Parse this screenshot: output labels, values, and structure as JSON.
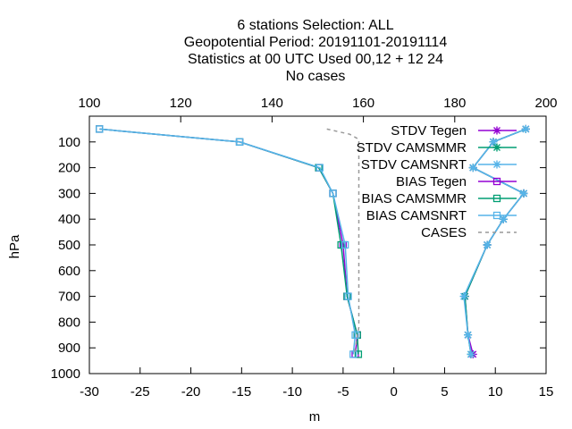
{
  "title_lines": [
    "6 stations Selection: ALL",
    "Geopotential  Period: 20191101-20191114",
    "Statistics at 00 UTC  Used  00,12  + 12 24",
    "No cases"
  ],
  "chart_data": {
    "type": "line",
    "xlabel": "m",
    "ylabel": "hPa",
    "xlim": [
      -30,
      15
    ],
    "x_ticks": [
      -30,
      -25,
      -20,
      -15,
      -10,
      -5,
      0,
      5,
      10,
      15
    ],
    "x2lim": [
      100,
      200
    ],
    "x2_ticks": [
      100,
      120,
      140,
      160,
      180,
      200
    ],
    "ylim": [
      1000,
      0
    ],
    "y_ticks": [
      100,
      200,
      300,
      400,
      500,
      600,
      700,
      800,
      900,
      1000
    ],
    "grid": false,
    "legend_position": "top-right",
    "series": [
      {
        "name": "STDV Tegen",
        "color": "#9400d3",
        "marker": "x-star",
        "axis": "x1",
        "points": [
          [
            13,
            50
          ],
          [
            9.8,
            100
          ],
          [
            7.8,
            200
          ],
          [
            12.8,
            300
          ],
          [
            10.8,
            400
          ],
          [
            9.2,
            500
          ],
          [
            7.0,
            700
          ],
          [
            7.3,
            850
          ],
          [
            7.8,
            925
          ]
        ]
      },
      {
        "name": "STDV CAMSMMR",
        "color": "#009e73",
        "marker": "x-star",
        "axis": "x1",
        "points": [
          [
            13,
            50
          ],
          [
            9.8,
            100
          ],
          [
            7.8,
            200
          ],
          [
            12.8,
            300
          ],
          [
            10.8,
            400
          ],
          [
            9.2,
            500
          ],
          [
            7.0,
            700
          ],
          [
            7.3,
            850
          ],
          [
            7.6,
            925
          ]
        ]
      },
      {
        "name": "STDV CAMSNRT",
        "color": "#56b4e9",
        "marker": "x-star",
        "axis": "x1",
        "points": [
          [
            13,
            50
          ],
          [
            9.8,
            100
          ],
          [
            7.8,
            200
          ],
          [
            12.8,
            300
          ],
          [
            10.8,
            400
          ],
          [
            9.2,
            500
          ],
          [
            6.9,
            700
          ],
          [
            7.3,
            850
          ],
          [
            7.6,
            925
          ]
        ]
      },
      {
        "name": "BIAS Tegen",
        "color": "#9400d3",
        "marker": "square",
        "axis": "x1",
        "points": [
          [
            -29,
            50
          ],
          [
            -15.2,
            100
          ],
          [
            -7.4,
            200
          ],
          [
            -6.0,
            300
          ],
          [
            -5.0,
            500
          ],
          [
            -4.6,
            700
          ],
          [
            -3.6,
            850
          ],
          [
            -3.8,
            925
          ]
        ]
      },
      {
        "name": "BIAS CAMSMMR",
        "color": "#009e73",
        "marker": "square",
        "axis": "x1",
        "points": [
          [
            -29,
            50
          ],
          [
            -15.2,
            100
          ],
          [
            -7.4,
            200
          ],
          [
            -6.0,
            300
          ],
          [
            -5.2,
            500
          ],
          [
            -4.6,
            700
          ],
          [
            -3.6,
            850
          ],
          [
            -3.5,
            925
          ]
        ]
      },
      {
        "name": "BIAS CAMSNRT",
        "color": "#56b4e9",
        "marker": "square",
        "axis": "x1",
        "points": [
          [
            -29,
            50
          ],
          [
            -15.2,
            100
          ],
          [
            -7.3,
            200
          ],
          [
            -6.0,
            300
          ],
          [
            -4.8,
            500
          ],
          [
            -4.5,
            700
          ],
          [
            -3.8,
            850
          ],
          [
            -4.0,
            925
          ]
        ]
      },
      {
        "name": "CASES",
        "color": "#999999",
        "marker": "none",
        "dashed": true,
        "axis": "x2",
        "points": [
          [
            152,
            50
          ],
          [
            157,
            70
          ],
          [
            159,
            90
          ],
          [
            159,
            110
          ],
          [
            159,
            820
          ],
          [
            158,
            925
          ]
        ]
      }
    ]
  }
}
